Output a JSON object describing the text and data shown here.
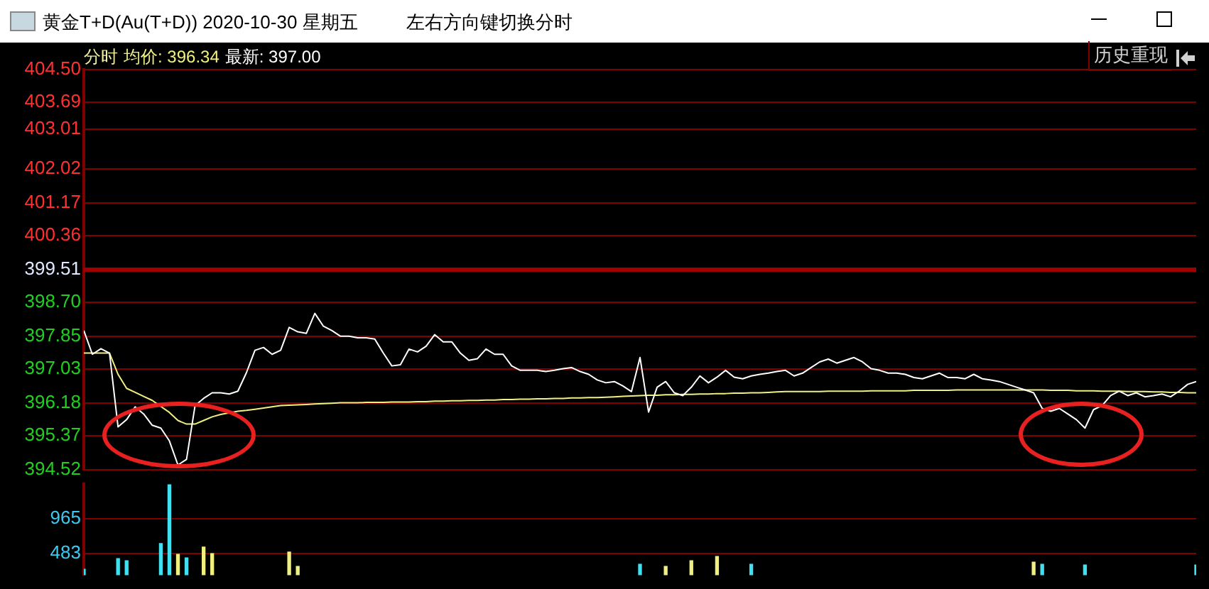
{
  "chart_data": [
    {
      "type": "line",
      "title": "黄金T+D(Au(T+D)) 2020-10-30 星期五",
      "subtitle": "左右方向键切换分时",
      "annotations": [
        "分时",
        "均价: 396.34",
        "最新: 397.00",
        "历史重现"
      ],
      "categories": [
        null,
        null,
        null,
        null,
        null,
        null,
        null,
        null,
        null,
        null,
        null,
        null,
        null,
        null,
        null,
        null,
        null,
        null,
        null,
        null,
        null,
        null,
        null,
        null,
        null,
        null,
        null,
        null,
        null,
        null,
        null,
        null,
        null,
        null,
        null,
        null,
        null,
        null,
        null,
        null,
        null,
        null,
        null,
        null,
        null,
        null,
        null,
        null,
        null,
        null,
        null,
        null,
        null,
        null,
        null,
        null,
        null,
        null,
        null,
        null,
        null,
        null,
        null,
        null,
        null,
        null,
        null,
        null,
        null,
        null,
        null,
        null,
        null,
        null,
        null,
        null,
        null,
        null,
        null,
        null,
        null,
        null,
        null,
        null,
        null,
        null,
        null,
        null,
        null,
        null,
        null,
        null,
        null,
        null,
        null,
        null,
        null,
        null,
        null,
        null,
        null,
        null,
        null,
        null,
        null,
        null,
        null,
        null,
        null,
        null,
        null,
        null,
        null,
        null,
        null,
        null,
        null,
        null,
        null,
        null,
        null,
        null,
        null,
        null,
        null,
        null,
        null,
        null,
        null,
        null,
        null
      ],
      "series": [
        {
          "color": "#ffffff",
          "values": [
            397.99,
            397.4,
            397.54,
            397.43,
            395.59,
            395.77,
            396.09,
            395.91,
            395.63,
            395.56,
            395.24,
            394.64,
            394.78,
            396.12,
            396.3,
            396.44,
            396.44,
            396.41,
            396.48,
            396.94,
            397.5,
            397.57,
            397.4,
            397.5,
            398.07,
            397.96,
            397.92,
            398.42,
            398.1,
            397.99,
            397.85,
            397.85,
            397.81,
            397.81,
            397.78,
            397.43,
            397.11,
            397.14,
            397.53,
            397.46,
            397.6,
            397.89,
            397.71,
            397.71,
            397.43,
            397.25,
            397.29,
            397.53,
            397.4,
            397.4,
            397.11,
            397.0,
            397.0,
            397.0,
            396.97,
            397.0,
            397.04,
            397.07,
            396.97,
            396.9,
            396.76,
            396.69,
            396.72,
            396.61,
            396.47,
            397.32,
            395.96,
            396.58,
            396.72,
            396.44,
            396.37,
            396.58,
            396.86,
            396.69,
            396.83,
            397.0,
            396.83,
            396.79,
            396.86,
            396.9,
            396.93,
            396.97,
            397.0,
            396.86,
            396.93,
            397.07,
            397.21,
            397.28,
            397.18,
            397.25,
            397.32,
            397.21,
            397.04,
            397.0,
            396.93,
            396.93,
            396.9,
            396.82,
            396.79,
            396.86,
            396.93,
            396.82,
            396.82,
            396.79,
            396.9,
            396.79,
            396.76,
            396.72,
            396.65,
            396.58,
            396.51,
            396.44,
            396.05,
            395.98,
            396.05,
            395.91,
            395.77,
            395.56,
            396.02,
            396.12,
            396.37,
            396.48,
            396.37,
            396.44,
            396.34,
            396.37,
            396.41,
            396.34,
            396.48,
            396.65,
            396.72
          ]
        },
        {
          "color": "#f0f080",
          "values": [
            397.43,
            397.43,
            397.43,
            397.43,
            396.9,
            396.55,
            396.45,
            396.35,
            396.25,
            396.1,
            395.95,
            395.75,
            395.66,
            395.66,
            395.75,
            395.84,
            395.9,
            395.94,
            395.98,
            396.0,
            396.03,
            396.06,
            396.09,
            396.12,
            396.13,
            396.14,
            396.15,
            396.16,
            396.17,
            396.18,
            396.19,
            396.19,
            396.19,
            396.2,
            396.2,
            396.2,
            396.21,
            396.21,
            396.21,
            396.22,
            396.22,
            396.23,
            396.23,
            396.24,
            396.24,
            396.25,
            396.25,
            396.26,
            396.26,
            396.27,
            396.27,
            396.28,
            396.28,
            396.29,
            396.29,
            396.3,
            396.3,
            396.31,
            396.31,
            396.32,
            396.32,
            396.33,
            396.34,
            396.35,
            396.36,
            396.37,
            396.38,
            396.38,
            396.39,
            396.39,
            396.4,
            396.4,
            396.41,
            396.41,
            396.42,
            396.42,
            396.43,
            396.43,
            396.44,
            396.44,
            396.45,
            396.46,
            396.47,
            396.47,
            396.47,
            396.47,
            396.47,
            396.48,
            396.48,
            396.48,
            396.48,
            396.48,
            396.49,
            396.49,
            396.49,
            396.49,
            396.49,
            396.5,
            396.5,
            396.5,
            396.5,
            396.5,
            396.51,
            396.51,
            396.51,
            396.51,
            396.51,
            396.51,
            396.51,
            396.51,
            396.51,
            396.51,
            396.51,
            396.5,
            396.5,
            396.5,
            396.49,
            396.49,
            396.49,
            396.48,
            396.48,
            396.48,
            396.47,
            396.47,
            396.47,
            396.46,
            396.46,
            396.45,
            396.45,
            396.44,
            396.44
          ]
        }
      ],
      "ylim": [
        394.52,
        404.5
      ],
      "yticks": [
        {
          "value": 404.5,
          "label": "404.50"
        },
        403.69,
        403.01,
        402.02,
        401.17,
        400.36,
        399.51,
        {
          "value": 398.7,
          "label": "398.70"
        },
        397.85,
        397.03,
        396.18,
        395.37,
        394.52
      ],
      "ref_lines": [
        {
          "axis": "y",
          "value": 399.51,
          "color": "#a00000"
        }
      ],
      "grid": "y",
      "tick_labels": "y",
      "legend": false,
      "marker": "none"
    },
    {
      "type": "bar",
      "categories": [
        null,
        null,
        null,
        null,
        null,
        null,
        null,
        null,
        null,
        null,
        null,
        null,
        null,
        null,
        null,
        null,
        null,
        null,
        null,
        null,
        null,
        null,
        null,
        null,
        null,
        null,
        null,
        null,
        null,
        null,
        null,
        null,
        null,
        null,
        null,
        null,
        null,
        null,
        null,
        null,
        null,
        null,
        null,
        null,
        null,
        null,
        null,
        null,
        null,
        null,
        null,
        null,
        null,
        null,
        null,
        null,
        null,
        null,
        null,
        null,
        null,
        null,
        null,
        null,
        null,
        null,
        null,
        null,
        null,
        null,
        null,
        null,
        null,
        null,
        null,
        null,
        null,
        null,
        null,
        null,
        null,
        null,
        null,
        null,
        null,
        null,
        null,
        null,
        null,
        null,
        null,
        null,
        null,
        null,
        null,
        null,
        null,
        null,
        null,
        null,
        null,
        null,
        null,
        null,
        null,
        null,
        null,
        null,
        null,
        null,
        null,
        null,
        null,
        null,
        null,
        null,
        null,
        null,
        null,
        null,
        null,
        null,
        null,
        null,
        null,
        null,
        null,
        null,
        null,
        null,
        null
      ],
      "series": [
        {
          "color": "#40e0f0",
          "values": [
            260,
            null,
            null,
            null,
            410,
            380,
            null,
            null,
            null,
            620,
            1440,
            null,
            420,
            null,
            null,
            null,
            null,
            null,
            null,
            null,
            null,
            null,
            null,
            null,
            null,
            null,
            null,
            null,
            null,
            null,
            null,
            null,
            null,
            null,
            null,
            null,
            null,
            null,
            null,
            null,
            null,
            null,
            null,
            null,
            null,
            null,
            null,
            null,
            null,
            null,
            null,
            null,
            null,
            null,
            null,
            null,
            null,
            null,
            null,
            null,
            null,
            null,
            null,
            null,
            null,
            330,
            null,
            null,
            null,
            null,
            null,
            null,
            null,
            null,
            null,
            null,
            null,
            null,
            330,
            null,
            null,
            null,
            null,
            null,
            null,
            null,
            null,
            null,
            null,
            null,
            null,
            null,
            null,
            null,
            null,
            null,
            null,
            null,
            null,
            null,
            null,
            null,
            null,
            null,
            null,
            null,
            null,
            null,
            null,
            null,
            null,
            null,
            330,
            null,
            null,
            null,
            null,
            320,
            null,
            null,
            null,
            null,
            null,
            null,
            null,
            null,
            null,
            null,
            null,
            null,
            320
          ]
        },
        {
          "color": "#f0f080",
          "values": [
            null,
            null,
            null,
            null,
            null,
            null,
            null,
            null,
            null,
            null,
            null,
            470,
            null,
            null,
            570,
            480,
            null,
            null,
            null,
            null,
            null,
            null,
            null,
            null,
            500,
            300,
            null,
            null,
            null,
            null,
            null,
            null,
            null,
            null,
            null,
            null,
            null,
            null,
            null,
            null,
            null,
            null,
            null,
            null,
            null,
            null,
            null,
            null,
            null,
            null,
            null,
            null,
            null,
            null,
            null,
            null,
            null,
            null,
            null,
            null,
            null,
            null,
            null,
            null,
            null,
            null,
            null,
            null,
            300,
            null,
            null,
            380,
            null,
            null,
            440,
            null,
            null,
            null,
            null,
            null,
            null,
            null,
            null,
            null,
            null,
            null,
            null,
            null,
            null,
            null,
            null,
            null,
            null,
            null,
            null,
            null,
            null,
            null,
            null,
            null,
            null,
            null,
            null,
            null,
            null,
            null,
            null,
            null,
            null,
            null,
            null,
            360,
            null,
            null,
            null,
            null,
            null,
            null,
            null,
            null,
            null,
            null,
            null,
            null,
            null,
            null,
            null,
            null,
            null,
            null,
            null
          ]
        }
      ],
      "ylim": [
        179,
        1456
      ],
      "yticks": [
        483,
        965
      ],
      "grid": "y",
      "tick_labels": "y",
      "legend": false
    }
  ]
}
